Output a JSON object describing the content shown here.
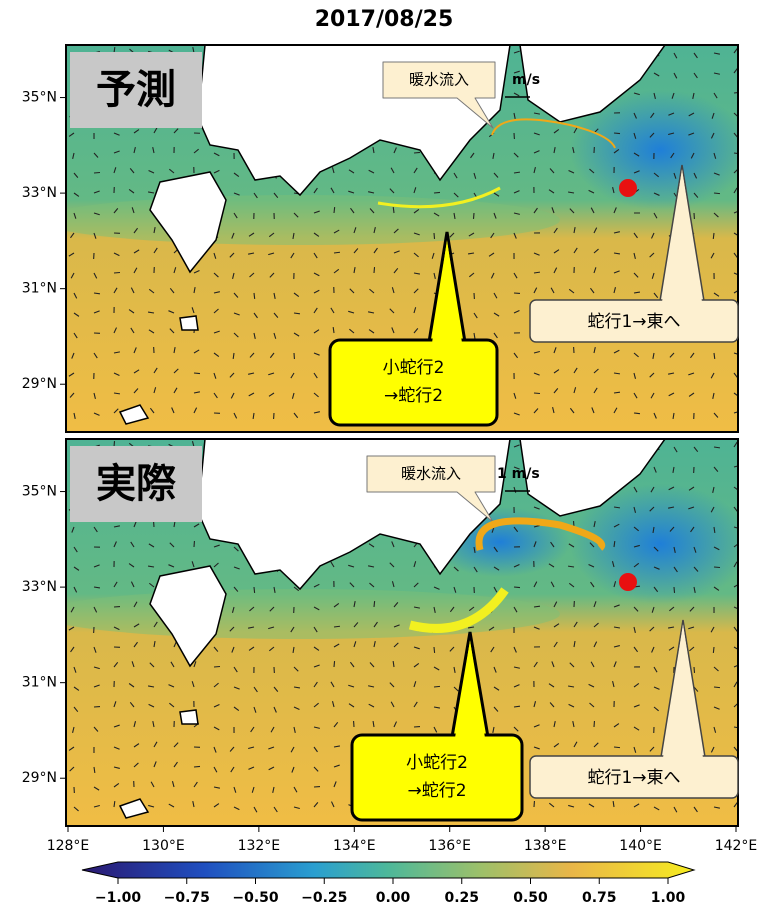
{
  "title": "2017/08/25",
  "map": {
    "xlim": [
      128,
      142
    ],
    "ylim": [
      28,
      36.1
    ],
    "xticks": [
      {
        "value": 128,
        "label": "128°E"
      },
      {
        "value": 130,
        "label": "130°E"
      },
      {
        "value": 132,
        "label": "132°E"
      },
      {
        "value": 134,
        "label": "134°E"
      },
      {
        "value": 136,
        "label": "136°E"
      },
      {
        "value": 138,
        "label": "138°E"
      },
      {
        "value": 140,
        "label": "140°E"
      },
      {
        "value": 142,
        "label": "142°E"
      }
    ],
    "yticks": [
      {
        "value": 29,
        "label": "29°N"
      },
      {
        "value": 31,
        "label": "31°N"
      },
      {
        "value": 33,
        "label": "33°N"
      },
      {
        "value": 35,
        "label": "35°N"
      }
    ]
  },
  "panels": [
    {
      "label": "予測",
      "warm_inflow": "暖水流入",
      "scale": "m/s",
      "callout_small": [
        "小蛇行2",
        "→蛇行2"
      ],
      "callout_east": "蛇行1→東へ"
    },
    {
      "label": "実際",
      "warm_inflow": "暖水流入",
      "scale": "1 m/s",
      "callout_small": [
        "小蛇行2",
        "→蛇行2"
      ],
      "callout_east": "蛇行1→東へ"
    }
  ],
  "colorbar": {
    "lim": [
      -1,
      1
    ],
    "ticks": [
      {
        "value": -1,
        "label": "−1.00"
      },
      {
        "value": -0.75,
        "label": "−0.75"
      },
      {
        "value": -0.5,
        "label": "−0.50"
      },
      {
        "value": -0.25,
        "label": "−0.25"
      },
      {
        "value": 0,
        "label": "0.00"
      },
      {
        "value": 0.25,
        "label": "0.25"
      },
      {
        "value": 0.5,
        "label": "0.50"
      },
      {
        "value": 0.75,
        "label": "0.75"
      },
      {
        "value": 1,
        "label": "1.00"
      }
    ]
  }
}
